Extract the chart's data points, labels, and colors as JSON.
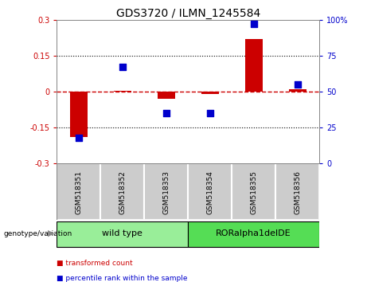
{
  "title": "GDS3720 / ILMN_1245584",
  "samples": [
    "GSM518351",
    "GSM518352",
    "GSM518353",
    "GSM518354",
    "GSM518355",
    "GSM518356"
  ],
  "bar_values": [
    -0.19,
    0.005,
    -0.03,
    -0.01,
    0.22,
    0.01
  ],
  "dot_values": [
    18,
    67,
    35,
    35,
    97,
    55
  ],
  "ylim_left": [
    -0.3,
    0.3
  ],
  "ylim_right": [
    0,
    100
  ],
  "yticks_left": [
    -0.3,
    -0.15,
    0,
    0.15,
    0.3
  ],
  "yticks_right": [
    0,
    25,
    50,
    75,
    100
  ],
  "ytick_labels_left": [
    "-0.3",
    "-0.15",
    "0",
    "0.15",
    "0.3"
  ],
  "ytick_labels_right": [
    "0",
    "25",
    "50",
    "75",
    "100%"
  ],
  "hlines_dotted": [
    -0.15,
    0.15
  ],
  "hline_zero": 0,
  "bar_color": "#CC0000",
  "dot_color": "#0000CC",
  "zero_line_color": "#CC0000",
  "groups": [
    {
      "label": "wild type",
      "samples_idx": [
        0,
        1,
        2
      ],
      "color": "#99EE99"
    },
    {
      "label": "RORalpha1delDE",
      "samples_idx": [
        3,
        4,
        5
      ],
      "color": "#55DD55"
    }
  ],
  "group_header": "genotype/variation",
  "legend_items": [
    {
      "label": "transformed count",
      "color": "#CC0000"
    },
    {
      "label": "percentile rank within the sample",
      "color": "#0000CC"
    }
  ],
  "sample_box_color": "#CCCCCC",
  "background_color": "#FFFFFF",
  "tick_label_color_left": "#CC0000",
  "tick_label_color_right": "#0000CC"
}
